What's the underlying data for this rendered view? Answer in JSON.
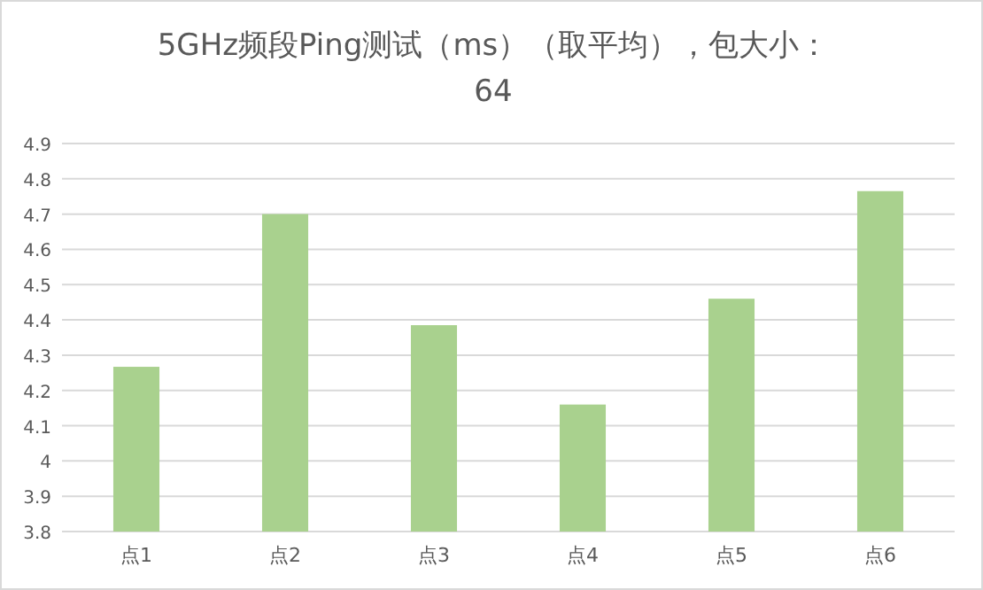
{
  "chart_data": {
    "type": "bar",
    "title": "5GHz频段Ping测试（ms）（取平均），包大小：64",
    "categories": [
      "点1",
      "点2",
      "点3",
      "点4",
      "点5",
      "点6"
    ],
    "values": [
      4.267,
      4.7,
      4.385,
      4.16,
      4.46,
      4.765
    ],
    "color": "#a9d18e",
    "ylim": [
      3.8,
      4.9
    ],
    "yticks": [
      3.8,
      3.9,
      4,
      4.1,
      4.2,
      4.3,
      4.4,
      4.5,
      4.6,
      4.7,
      4.8,
      4.9
    ],
    "grid": "y"
  }
}
